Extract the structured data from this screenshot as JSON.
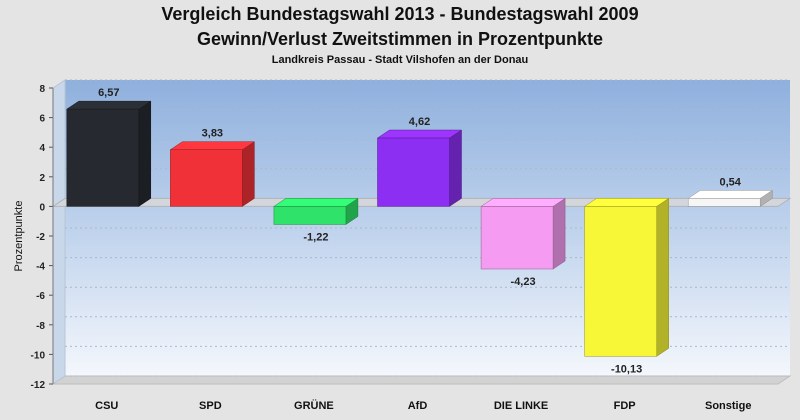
{
  "title_line1": "Vergleich Bundestagswahl 2013 - Bundestagswahl 2009",
  "title_line2": "Gewinn/Verlust Zweitstimmen in Prozentpunkte",
  "subtitle": "Landkreis Passau - Stadt Vilshofen an der Donau",
  "chart_data": {
    "type": "bar",
    "categories": [
      "CSU",
      "SPD",
      "GRÜNE",
      "AfD",
      "DIE LINKE",
      "FDP",
      "Sonstige"
    ],
    "values": [
      6.57,
      3.83,
      -1.22,
      4.62,
      -4.23,
      -10.13,
      0.54
    ],
    "value_labels": [
      "6,57",
      "3,83",
      "-1,22",
      "4,62",
      "-4,23",
      "-10,13",
      "0,54"
    ],
    "colors": [
      "#262a30",
      "#f03238",
      "#2ee26a",
      "#8c2ff2",
      "#f59bf2",
      "#f7f737",
      "#f6f6f6"
    ],
    "ylabel": "Prozentpunkte",
    "ylim": [
      -12,
      8
    ],
    "yticks": [
      8,
      6,
      4,
      2,
      0,
      -2,
      -4,
      -6,
      -8,
      -10,
      -12
    ],
    "grid": true,
    "style": "3d"
  }
}
